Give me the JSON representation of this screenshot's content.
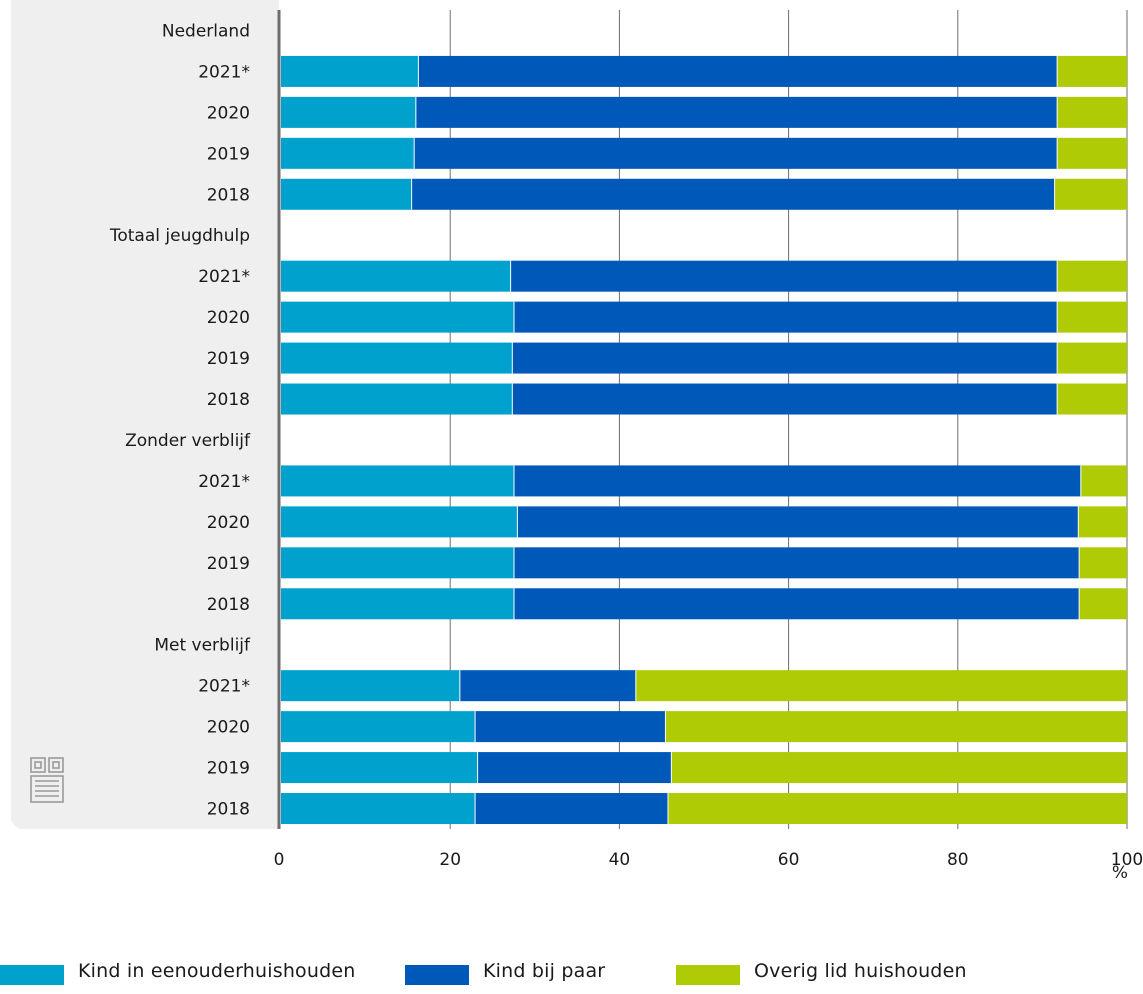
{
  "chart_data": {
    "type": "bar",
    "orientation": "horizontal",
    "stacked": true,
    "unit_label": "%",
    "xlim": [
      0,
      100
    ],
    "xticks": [
      "0",
      "20",
      "40",
      "60",
      "80",
      "100"
    ],
    "grid": true,
    "legend_position": "bottom",
    "colors": {
      "kind_in_eenouderhuishouden": "#00a1cd",
      "kind_bij_paar": "#0058b8",
      "overig_lid_huishouden": "#afcb05"
    },
    "series": [
      {
        "name": "Kind in eenouderhuishouden",
        "key": "kind_in_eenouderhuishouden"
      },
      {
        "name": "Kind bij paar",
        "key": "kind_bij_paar"
      },
      {
        "name": "Overig lid huishouden",
        "key": "overig_lid_huishouden"
      }
    ],
    "rows": [
      {
        "label": "Nederland",
        "header": true
      },
      {
        "label": "2021*",
        "values": [
          16.3,
          75.5,
          8.2
        ]
      },
      {
        "label": "2020",
        "values": [
          16.0,
          75.8,
          8.2
        ]
      },
      {
        "label": "2019",
        "values": [
          15.8,
          76.0,
          8.2
        ]
      },
      {
        "label": "2018",
        "values": [
          15.5,
          76.0,
          8.5
        ]
      },
      {
        "label": "Totaal jeugdhulp",
        "header": true
      },
      {
        "label": "2021*",
        "values": [
          27.2,
          64.6,
          8.2
        ]
      },
      {
        "label": "2020",
        "values": [
          27.6,
          64.2,
          8.2
        ]
      },
      {
        "label": "2019",
        "values": [
          27.4,
          64.4,
          8.2
        ]
      },
      {
        "label": "2018",
        "values": [
          27.4,
          64.4,
          8.2
        ]
      },
      {
        "label": "Zonder verblijf",
        "header": true
      },
      {
        "label": "2021*",
        "values": [
          27.6,
          67.0,
          5.4
        ]
      },
      {
        "label": "2020",
        "values": [
          28.0,
          66.3,
          5.7
        ]
      },
      {
        "label": "2019",
        "values": [
          27.6,
          66.8,
          5.6
        ]
      },
      {
        "label": "2018",
        "values": [
          27.6,
          66.8,
          5.6
        ]
      },
      {
        "label": "Met verblijf",
        "header": true
      },
      {
        "label": "2021*",
        "values": [
          21.2,
          20.8,
          58.0
        ]
      },
      {
        "label": "2020",
        "values": [
          23.0,
          22.5,
          54.5
        ]
      },
      {
        "label": "2019",
        "values": [
          23.3,
          22.9,
          53.8
        ]
      },
      {
        "label": "2018",
        "values": [
          23.0,
          22.8,
          54.2
        ]
      }
    ]
  },
  "logo": {
    "name": "cbs-logo"
  }
}
